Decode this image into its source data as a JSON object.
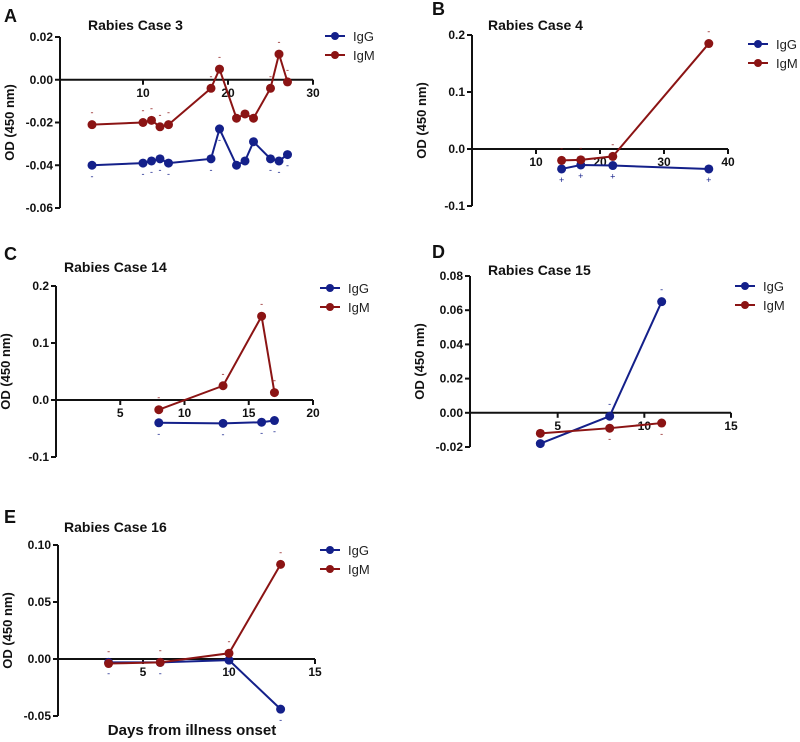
{
  "colors": {
    "IgG": "#14208a",
    "IgM": "#8b1414",
    "axis": "#111111"
  },
  "shared_xlabel": "Days from illness onset",
  "chart_data": [
    {
      "panel": "A",
      "type": "line",
      "title": "Rabies Case 3",
      "xlabel": "",
      "ylabel": "OD (450 nm)",
      "xlim": [
        0,
        30
      ],
      "ylim": [
        -0.06,
        0.02
      ],
      "xticks": [
        10,
        20,
        30
      ],
      "yticks": [
        0.02,
        0.0,
        -0.02,
        -0.04,
        -0.06
      ],
      "ytick_labels": [
        "0.02",
        "0.00",
        "-0.02",
        "-0.04",
        "-0.06"
      ],
      "legend": "top-right",
      "legend_order": [
        "IgG",
        "IgM"
      ],
      "series": [
        {
          "name": "IgG",
          "x": [
            4,
            10,
            11,
            12,
            13,
            18,
            19,
            21,
            22,
            23,
            25,
            26,
            27
          ],
          "y": [
            -0.04,
            -0.039,
            -0.038,
            -0.037,
            -0.039,
            -0.037,
            -0.023,
            -0.04,
            -0.038,
            -0.029,
            -0.037,
            -0.038,
            -0.035
          ],
          "annotations": [
            "-",
            "-",
            "-",
            "-",
            "-",
            "-",
            "-",
            "",
            "",
            "",
            "-",
            "-",
            "-"
          ],
          "annotation_side": "below"
        },
        {
          "name": "IgM",
          "x": [
            4,
            10,
            11,
            12,
            13,
            18,
            19,
            21,
            22,
            23,
            25,
            26,
            27
          ],
          "y": [
            -0.021,
            -0.02,
            -0.019,
            -0.022,
            -0.021,
            -0.004,
            0.005,
            -0.018,
            -0.016,
            -0.018,
            -0.004,
            0.012,
            -0.001
          ],
          "annotations": [
            "-",
            "-",
            "-",
            "-",
            "-",
            "-",
            "-",
            "",
            "",
            "",
            "-",
            "-",
            "-"
          ],
          "annotation_side": "above"
        }
      ]
    },
    {
      "panel": "B",
      "type": "line",
      "title": "Rabies Case 4",
      "xlabel": "",
      "ylabel": "OD (450 nm)",
      "xlim": [
        0,
        40
      ],
      "ylim": [
        -0.1,
        0.2
      ],
      "xticks": [
        10,
        20,
        30,
        40
      ],
      "yticks": [
        0.2,
        0.1,
        0.0,
        -0.1
      ],
      "ytick_labels": [
        "0.2",
        "0.1",
        "0.0",
        "-0.1"
      ],
      "legend": "top-right",
      "legend_order": [
        "IgG",
        "IgM"
      ],
      "series": [
        {
          "name": "IgG",
          "x": [
            14,
            17,
            22,
            37
          ],
          "y": [
            -0.035,
            -0.028,
            -0.029,
            -0.035
          ],
          "annotations": [
            "+",
            "+",
            "+",
            "+"
          ],
          "annotation_side": "below"
        },
        {
          "name": "IgM",
          "x": [
            14,
            17,
            22,
            37
          ],
          "y": [
            -0.02,
            -0.019,
            -0.013,
            0.185
          ],
          "annotations": [
            "-",
            "-",
            "-",
            "-"
          ],
          "annotation_side": "above"
        }
      ]
    },
    {
      "panel": "C",
      "type": "line",
      "title": "Rabies Case 14",
      "xlabel": "",
      "ylabel": "OD (450 nm)",
      "xlim": [
        0,
        20
      ],
      "ylim": [
        -0.1,
        0.2
      ],
      "xticks": [
        5,
        10,
        15,
        20
      ],
      "yticks": [
        0.2,
        0.1,
        0.0,
        -0.1
      ],
      "ytick_labels": [
        "0.2",
        "0.1",
        "0.0",
        "-0.1"
      ],
      "legend": "top-right",
      "legend_order": [
        "IgG",
        "IgM"
      ],
      "series": [
        {
          "name": "IgG",
          "x": [
            8,
            13,
            16,
            17
          ],
          "y": [
            -0.04,
            -0.041,
            -0.039,
            -0.036
          ],
          "annotations": [
            "-",
            "-",
            "-",
            "-"
          ],
          "annotation_side": "below"
        },
        {
          "name": "IgM",
          "x": [
            8,
            13,
            16,
            17
          ],
          "y": [
            -0.017,
            0.025,
            0.147,
            0.013
          ],
          "annotations": [
            "-",
            "-",
            "-",
            "-"
          ],
          "annotation_side": "above"
        }
      ]
    },
    {
      "panel": "D",
      "type": "line",
      "title": "Rabies Case 15",
      "xlabel": "",
      "ylabel": "OD (450 nm)",
      "xlim": [
        0,
        15
      ],
      "ylim": [
        -0.02,
        0.08
      ],
      "xticks": [
        5,
        10,
        15
      ],
      "yticks": [
        0.08,
        0.06,
        0.04,
        0.02,
        0.0,
        -0.02
      ],
      "ytick_labels": [
        "0.08",
        "0.06",
        "0.04",
        "0.02",
        "0.00",
        "-0.02"
      ],
      "legend": "top-right",
      "legend_order": [
        "IgG",
        "IgM"
      ],
      "series": [
        {
          "name": "IgG",
          "x": [
            4,
            8,
            11
          ],
          "y": [
            -0.018,
            -0.002,
            0.065
          ],
          "annotations": [
            "",
            "-",
            "-"
          ],
          "annotation_side": "above"
        },
        {
          "name": "IgM",
          "x": [
            4,
            8,
            11
          ],
          "y": [
            -0.012,
            -0.009,
            -0.006
          ],
          "annotations": [
            "",
            "-",
            "-"
          ],
          "annotation_side": "below"
        }
      ]
    },
    {
      "panel": "E",
      "type": "line",
      "title": "Rabies Case 16",
      "xlabel": "Days from illness onset",
      "ylabel": "OD (450 nm)",
      "xlim": [
        0,
        15
      ],
      "ylim": [
        -0.05,
        0.1
      ],
      "xticks": [
        5,
        10,
        15
      ],
      "yticks": [
        0.1,
        0.05,
        0.0,
        -0.05
      ],
      "ytick_labels": [
        "0.10",
        "0.05",
        "0.00",
        "-0.05"
      ],
      "legend": "top-right",
      "legend_order": [
        "IgG",
        "IgM"
      ],
      "series": [
        {
          "name": "IgG",
          "x": [
            3,
            6,
            10,
            13
          ],
          "y": [
            -0.003,
            -0.003,
            -0.001,
            -0.044
          ],
          "annotations": [
            "-",
            "-",
            "-",
            "-"
          ],
          "annotation_side": "below"
        },
        {
          "name": "IgM",
          "x": [
            3,
            6,
            10,
            13
          ],
          "y": [
            -0.004,
            -0.003,
            0.005,
            0.083
          ],
          "annotations": [
            "-",
            "-",
            "-",
            "-"
          ],
          "annotation_side": "above"
        }
      ]
    }
  ]
}
